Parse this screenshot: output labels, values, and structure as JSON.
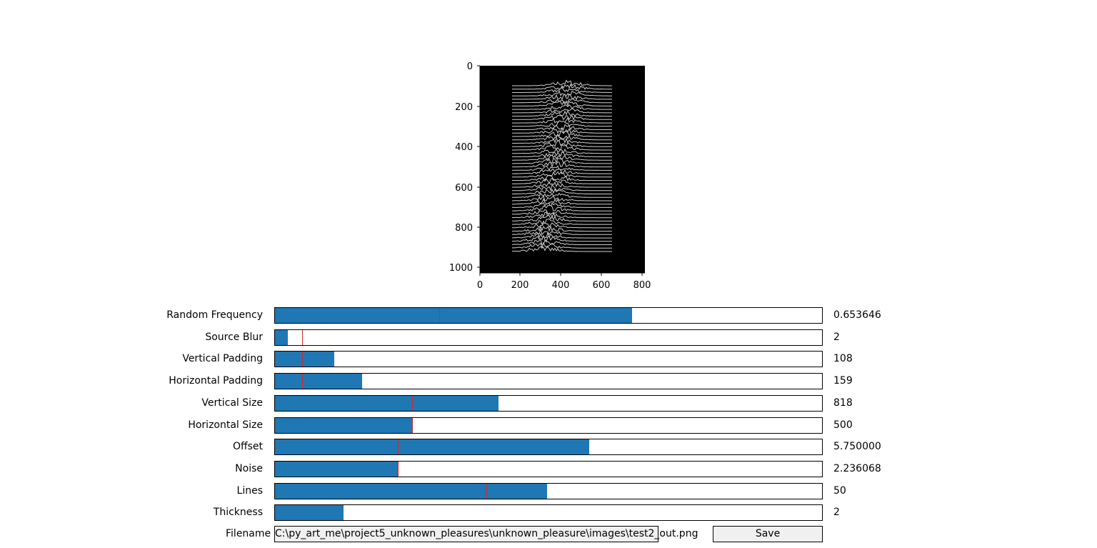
{
  "plot": {
    "x_ticks": [
      "0",
      "200",
      "400",
      "600",
      "800"
    ],
    "y_ticks": [
      "0",
      "200",
      "400",
      "600",
      "800",
      "1000"
    ],
    "image_description_icon": "waveform-image-icon"
  },
  "sliders": [
    {
      "name": "random-frequency",
      "label": "Random Frequency",
      "value_text": "0.653646",
      "fraction": 0.653,
      "initial": 0.3
    },
    {
      "name": "source-blur",
      "label": "Source Blur",
      "value_text": "2",
      "fraction": 0.023,
      "initial": 0.05
    },
    {
      "name": "vertical-padding",
      "label": "Vertical Padding",
      "value_text": "108",
      "fraction": 0.108,
      "initial": 0.05
    },
    {
      "name": "horizontal-padding",
      "label": "Horizontal Padding",
      "value_text": "159",
      "fraction": 0.159,
      "initial": 0.05
    },
    {
      "name": "vertical-size",
      "label": "Vertical Size",
      "value_text": "818",
      "fraction": 0.409,
      "initial": 0.25
    },
    {
      "name": "horizontal-size",
      "label": "Horizontal Size",
      "value_text": "500",
      "fraction": 0.25,
      "initial": 0.25
    },
    {
      "name": "offset",
      "label": "Offset",
      "value_text": "5.750000",
      "fraction": 0.575,
      "initial": 0.224
    },
    {
      "name": "noise",
      "label": "Noise",
      "value_text": "2.236068",
      "fraction": 0.224,
      "initial": 0.224
    },
    {
      "name": "lines",
      "label": "Lines",
      "value_text": "50",
      "fraction": 0.497,
      "initial": 0.387
    },
    {
      "name": "thickness",
      "label": "Thickness",
      "value_text": "2",
      "fraction": 0.125,
      "initial": null
    }
  ],
  "filename": {
    "label": "Filename",
    "value": "C:\\py_art_me\\project5_unknown_pleasures\\unknown_pleasure\\images\\test2_out.png"
  },
  "save_button": {
    "label": "Save"
  },
  "colors": {
    "fill": "#1f77b4",
    "initial_marker": "#d62728",
    "button_bg": "#f0f0f0"
  }
}
